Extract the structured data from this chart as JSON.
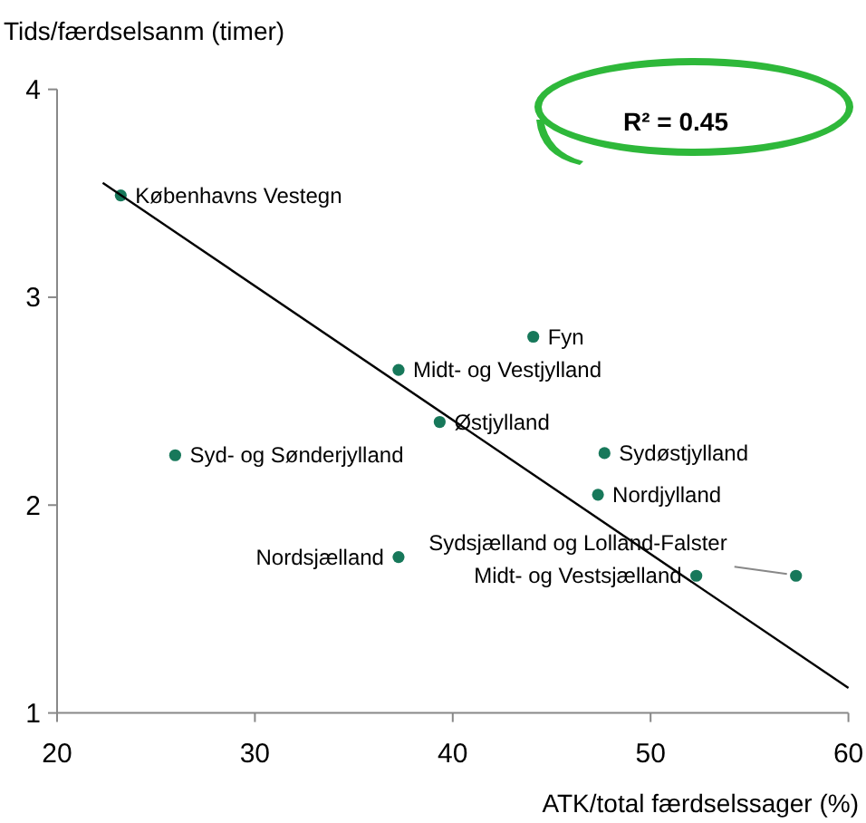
{
  "chart_data": {
    "type": "scatter",
    "xlabel": "ATK/total færdselssager (%)",
    "ylabel": "Tids/færdselsanm (timer)",
    "xlim": [
      20,
      60
    ],
    "xticks": [
      20,
      30,
      40,
      50,
      60
    ],
    "ylim": [
      1,
      4
    ],
    "yticks": [
      1,
      2,
      3,
      4
    ],
    "grid": false,
    "series": [
      {
        "marker": "circle",
        "color": "#17785a",
        "x": [
          23.22,
          44.07,
          37.26,
          39.34,
          25.97,
          47.67,
          47.34,
          37.26,
          52.31,
          57.35
        ],
        "values": [
          3.49,
          2.81,
          2.65,
          2.4,
          2.24,
          2.25,
          2.05,
          1.75,
          1.66,
          1.66
        ]
      },
      {
        "type": "line",
        "color": "#000000",
        "x": [
          22.31,
          60.0
        ],
        "values": [
          3.55,
          1.12
        ]
      }
    ],
    "annotations": [
      {
        "text": "Københavns Vestegn",
        "x": 23.22,
        "y": 3.49
      },
      {
        "text": "Fyn",
        "x": 44.07,
        "y": 2.81
      },
      {
        "text": "Midt- og Vestjylland",
        "x": 37.26,
        "y": 2.65
      },
      {
        "text": "Østjylland",
        "x": 39.34,
        "y": 2.4
      },
      {
        "text": "Syd- og Sønderjylland",
        "x": 25.97,
        "y": 2.24
      },
      {
        "text": "Sydøstjylland",
        "x": 47.67,
        "y": 2.25
      },
      {
        "text": "Nordjylland",
        "x": 47.34,
        "y": 2.05
      },
      {
        "text": "Nordsjælland",
        "x": 37.26,
        "y": 1.75
      },
      {
        "text": "Midt- og Vestsjælland",
        "x": 52.31,
        "y": 1.66
      },
      {
        "text": "Sydsjælland og Lolland-Falster",
        "x": 57.35,
        "y": 1.66
      },
      "R² = 0.45"
    ]
  }
}
